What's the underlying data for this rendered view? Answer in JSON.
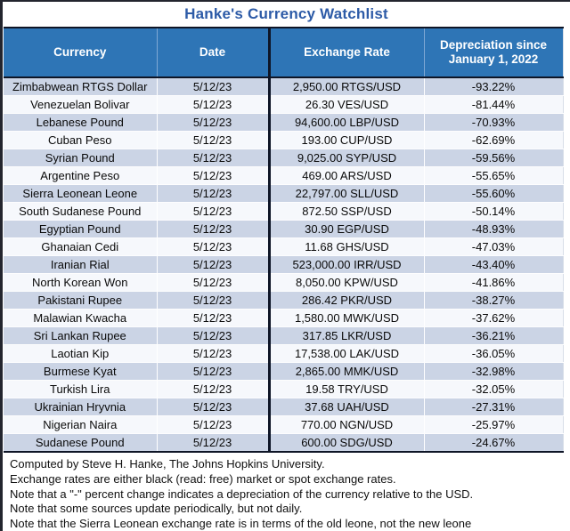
{
  "title": "Hanke's Currency Watchlist",
  "colors": {
    "header_bg": "#2E75B6",
    "header_text": "#FFFFFF",
    "title_text": "#2D5BA7",
    "row_shaded": "#CBD4E5",
    "row_plain": "#F6F8FC",
    "divider_dark": "#0E1526",
    "body_text": "#000000"
  },
  "chart_data": {
    "type": "table",
    "title": "Hanke's Currency Watchlist",
    "columns": [
      "Currency",
      "Date",
      "Exchange Rate",
      "Depreciation since January 1, 2022"
    ],
    "rows": [
      {
        "currency": "Zimbabwean RTGS Dollar",
        "date": "5/12/23",
        "rate": "2,950.00 RTGS/USD",
        "depreciation": "-93.22%"
      },
      {
        "currency": "Venezuelan Bolivar",
        "date": "5/12/23",
        "rate": "26.30 VES/USD",
        "depreciation": "-81.44%"
      },
      {
        "currency": "Lebanese Pound",
        "date": "5/12/23",
        "rate": "94,600.00 LBP/USD",
        "depreciation": "-70.93%"
      },
      {
        "currency": "Cuban Peso",
        "date": "5/12/23",
        "rate": "193.00 CUP/USD",
        "depreciation": "-62.69%"
      },
      {
        "currency": "Syrian Pound",
        "date": "5/12/23",
        "rate": "9,025.00 SYP/USD",
        "depreciation": "-59.56%"
      },
      {
        "currency": "Argentine Peso",
        "date": "5/12/23",
        "rate": "469.00 ARS/USD",
        "depreciation": "-55.65%"
      },
      {
        "currency": "Sierra Leonean Leone",
        "date": "5/12/23",
        "rate": "22,797.00 SLL/USD",
        "depreciation": "-55.60%"
      },
      {
        "currency": "South Sudanese Pound",
        "date": "5/12/23",
        "rate": "872.50 SSP/USD",
        "depreciation": "-50.14%"
      },
      {
        "currency": "Egyptian Pound",
        "date": "5/12/23",
        "rate": "30.90 EGP/USD",
        "depreciation": "-48.93%"
      },
      {
        "currency": "Ghanaian Cedi",
        "date": "5/12/23",
        "rate": "11.68 GHS/USD",
        "depreciation": "-47.03%"
      },
      {
        "currency": "Iranian Rial",
        "date": "5/12/23",
        "rate": "523,000.00 IRR/USD",
        "depreciation": "-43.40%"
      },
      {
        "currency": "North Korean Won",
        "date": "5/12/23",
        "rate": "8,050.00 KPW/USD",
        "depreciation": "-41.86%"
      },
      {
        "currency": "Pakistani Rupee",
        "date": "5/12/23",
        "rate": "286.42 PKR/USD",
        "depreciation": "-38.27%"
      },
      {
        "currency": "Malawian Kwacha",
        "date": "5/12/23",
        "rate": "1,580.00 MWK/USD",
        "depreciation": "-37.62%"
      },
      {
        "currency": "Sri Lankan Rupee",
        "date": "5/12/23",
        "rate": "317.85 LKR/USD",
        "depreciation": "-36.21%"
      },
      {
        "currency": "Laotian Kip",
        "date": "5/12/23",
        "rate": "17,538.00 LAK/USD",
        "depreciation": "-36.05%"
      },
      {
        "currency": "Burmese Kyat",
        "date": "5/12/23",
        "rate": "2,865.00 MMK/USD",
        "depreciation": "-32.98%"
      },
      {
        "currency": "Turkish Lira",
        "date": "5/12/23",
        "rate": "19.58 TRY/USD",
        "depreciation": "-32.05%"
      },
      {
        "currency": "Ukrainian Hryvnia",
        "date": "5/12/23",
        "rate": "37.68 UAH/USD",
        "depreciation": "-27.31%"
      },
      {
        "currency": "Nigerian Naira",
        "date": "5/12/23",
        "rate": "770.00 NGN/USD",
        "depreciation": "-25.97%"
      },
      {
        "currency": "Sudanese Pound",
        "date": "5/12/23",
        "rate": "600.00 SDG/USD",
        "depreciation": "-24.67%"
      }
    ]
  },
  "footer": {
    "notes": [
      "Computed by Steve H. Hanke, The Johns Hopkins University.",
      "Exchange rates are either black (read: free) market or spot exchange rates.",
      "Note that a \"-\" percent change indicates a depreciation of the currency relative to the USD.",
      "Note that some sources update periodically, but not daily.",
      "Note that the Sierra Leonean exchange rate is in terms of the old leone, not the new leone"
    ]
  }
}
